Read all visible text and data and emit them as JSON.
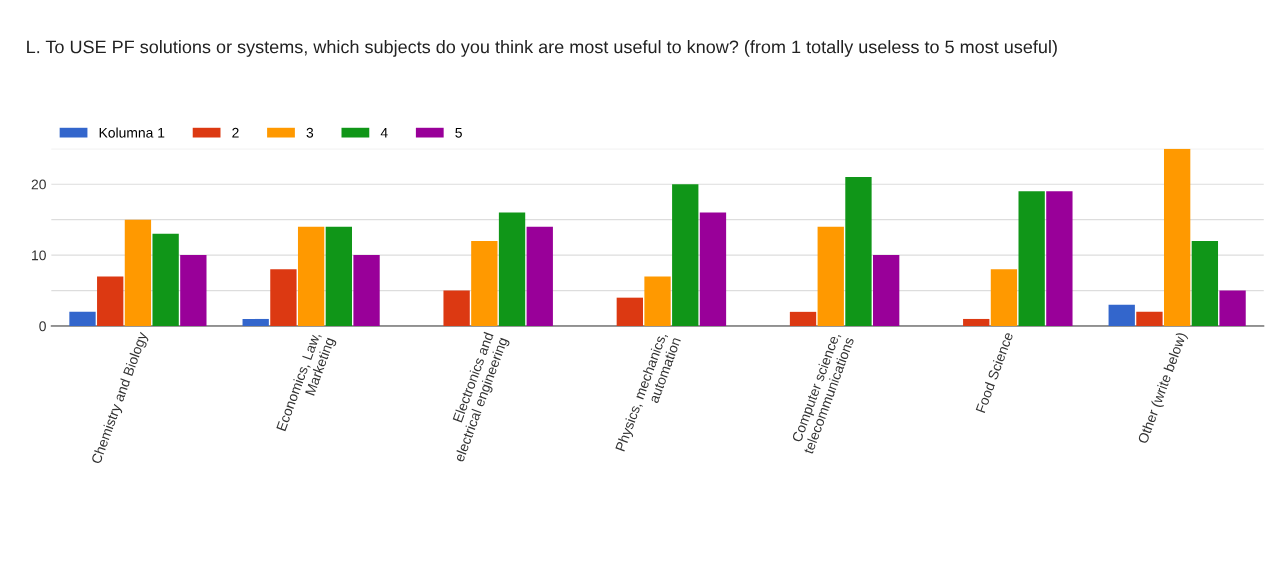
{
  "chart_data": {
    "type": "bar",
    "title": "L. To USE PF solutions or systems, which subjects do you think are most useful to know? (from 1 totally useless to 5 most useful)",
    "categories": [
      "Chemistry and Biology",
      "Economics, Law, Marketing",
      "Electronics and electrical engineering",
      "Physics, mechanics, automation",
      "Computer science, telecommunications",
      "Food Science",
      "Other (write below)"
    ],
    "series": [
      {
        "name": "Kolumna 1",
        "color": "#3366cc",
        "values": [
          2,
          1,
          0,
          0,
          0,
          0,
          3
        ]
      },
      {
        "name": "2",
        "color": "#dc3912",
        "values": [
          7,
          8,
          5,
          4,
          2,
          1,
          2
        ]
      },
      {
        "name": "3",
        "color": "#ff9900",
        "values": [
          15,
          14,
          12,
          7,
          14,
          8,
          25
        ]
      },
      {
        "name": "4",
        "color": "#109618",
        "values": [
          13,
          14,
          16,
          20,
          21,
          19,
          12
        ]
      },
      {
        "name": "5",
        "color": "#990099",
        "values": [
          10,
          10,
          14,
          16,
          10,
          19,
          5
        ]
      }
    ],
    "ylim": [
      0,
      25
    ],
    "yticks": [
      0,
      {
        "value": 5,
        "label": null
      },
      10,
      {
        "value": 15,
        "label": null
      },
      20,
      {
        "value": 25,
        "label": null
      }
    ],
    "grid": "y",
    "legend": "top left"
  }
}
